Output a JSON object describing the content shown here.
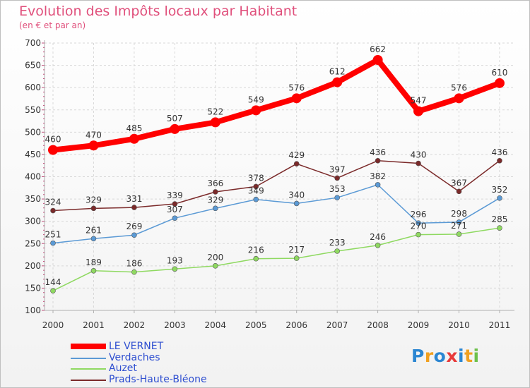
{
  "header": {
    "title": "Evolution des Impôts locaux par Habitant",
    "subtitle": "(en € et par an)"
  },
  "logo": {
    "text": "Proxiti",
    "colors": [
      "#2b86d2",
      "#f0a021",
      "#2b86d2",
      "#e83a3a",
      "#2b86d2",
      "#f0a021",
      "#6cc04a"
    ]
  },
  "chart_data": {
    "type": "line",
    "x": [
      "2000",
      "2001",
      "2002",
      "2003",
      "2004",
      "2005",
      "2006",
      "2007",
      "2008",
      "2009",
      "2010",
      "2011"
    ],
    "ylim": [
      100,
      700
    ],
    "yticks": [
      "100",
      "150",
      "200",
      "250",
      "300",
      "350",
      "400",
      "450",
      "500",
      "550",
      "600",
      "650",
      "700"
    ],
    "grid": true,
    "legend_position": "bottom-left",
    "series": [
      {
        "name": "LE VERNET",
        "color": "#ff0000",
        "values": [
          460,
          470,
          485,
          507,
          522,
          549,
          576,
          612,
          662,
          547,
          576,
          610
        ],
        "labels": [
          "460",
          "470",
          "485",
          "507",
          "522",
          "549",
          "576",
          "612",
          "662",
          "547",
          "576",
          "610"
        ]
      },
      {
        "name": "Verdaches",
        "color": "#5b9ad5",
        "values": [
          251,
          261,
          269,
          307,
          329,
          349,
          340,
          353,
          382,
          296,
          298,
          352
        ],
        "labels": [
          "251",
          "261",
          "269",
          "307",
          "329",
          "349",
          "340",
          "353",
          "382",
          "296",
          "298",
          "352"
        ]
      },
      {
        "name": "Auzet",
        "color": "#8fd961",
        "values": [
          144,
          189,
          186,
          193,
          200,
          216,
          217,
          233,
          246,
          270,
          271,
          285
        ],
        "labels": [
          "144",
          "189",
          "186",
          "193",
          "200",
          "216",
          "217",
          "233",
          "246",
          "270",
          "271",
          "285"
        ]
      },
      {
        "name": "Prads-Haute-Bléone",
        "color": "#7b2a2a",
        "values": [
          324,
          329,
          331,
          339,
          366,
          378,
          429,
          397,
          436,
          430,
          367,
          436
        ],
        "labels": [
          "324",
          "329",
          "331",
          "339",
          "366",
          "378",
          "429",
          "397",
          "436",
          "430",
          "367",
          "436"
        ]
      }
    ]
  }
}
